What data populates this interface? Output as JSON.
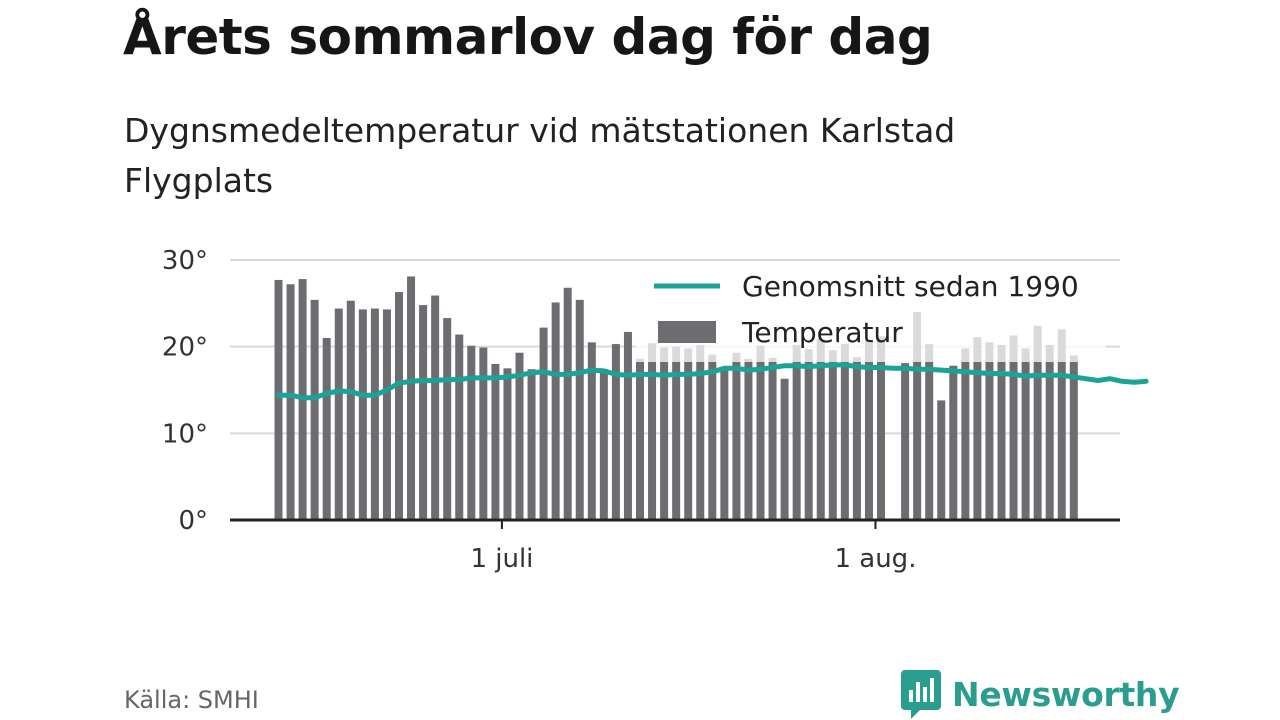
{
  "header": {
    "title": "Årets sommarlov dag för dag",
    "subtitle": "Dygnsmedeltemperatur vid mätstationen Karlstad Flygplats"
  },
  "footer": {
    "source": "Källa: SMHI",
    "brand": "Newsworthy"
  },
  "colors": {
    "bar": "#6d6d71",
    "line": "#1aa396",
    "grid": "#d9d9d9",
    "axis": "#222222",
    "legend_bg": "rgba(255,255,255,0.75)"
  },
  "chart_data": {
    "type": "bar",
    "title": "Årets sommarlov dag för dag",
    "subtitle": "Dygnsmedeltemperatur vid mätstationen Karlstad Flygplats",
    "xlabel": "",
    "ylabel": "",
    "ylim": [
      0,
      30
    ],
    "yticks": [
      {
        "value": 0,
        "label": "0°"
      },
      {
        "value": 10,
        "label": "10°"
      },
      {
        "value": 20,
        "label": "20°"
      },
      {
        "value": 30,
        "label": "30°"
      }
    ],
    "xticks": [
      {
        "date": "2018-07-01",
        "label": "1 juli"
      },
      {
        "date": "2018-08-01",
        "label": "1 aug."
      }
    ],
    "start_date": "2018-06-12",
    "grid": true,
    "legend_position": "top-right",
    "series": [
      {
        "name": "Genomsnitt sedan 1990",
        "type": "line",
        "color": "#1aa396",
        "values": [
          14.4,
          14.4,
          14.1,
          14.1,
          14.6,
          14.9,
          14.8,
          14.4,
          14.4,
          15.0,
          15.8,
          16.0,
          16.1,
          16.1,
          16.2,
          16.2,
          16.4,
          16.4,
          16.4,
          16.5,
          16.7,
          17.0,
          17.1,
          16.8,
          16.8,
          17.0,
          17.3,
          17.2,
          16.8,
          16.7,
          16.8,
          16.8,
          16.7,
          16.8,
          16.8,
          16.9,
          17.1,
          17.5,
          17.5,
          17.3,
          17.4,
          17.6,
          17.8,
          17.8,
          17.7,
          17.8,
          17.9,
          17.9,
          17.7,
          17.6,
          17.6,
          17.5,
          17.5,
          17.4,
          17.4,
          17.3,
          17.2,
          17.1,
          17.0,
          16.9,
          16.9,
          16.8,
          16.6,
          16.7,
          16.7,
          16.7,
          16.5,
          16.3,
          16.1,
          16.3,
          16.0,
          15.9,
          16.0
        ]
      },
      {
        "name": "Temperatur",
        "type": "bar",
        "color": "#6d6d71",
        "values": [
          27.7,
          27.2,
          27.8,
          25.4,
          21.0,
          24.4,
          25.3,
          24.3,
          24.4,
          24.3,
          26.3,
          28.1,
          24.8,
          25.9,
          23.3,
          21.4,
          20.1,
          19.9,
          18.0,
          17.5,
          19.3,
          17.4,
          22.2,
          25.1,
          26.8,
          25.4,
          20.5,
          17.4,
          20.3,
          21.7,
          18.6,
          20.4,
          19.9,
          20.0,
          19.8,
          20.2,
          19.1,
          17.6,
          19.3,
          18.6,
          20.1,
          18.7,
          16.3,
          20.2,
          19.7,
          20.9,
          19.6,
          20.3,
          18.8,
          20.7,
          21.2,
          null,
          18.1,
          24.0,
          20.3,
          13.8,
          17.8,
          19.8,
          21.1,
          20.5,
          20.2,
          21.3,
          19.8,
          22.4,
          20.2,
          22.0,
          19.0
        ]
      }
    ]
  }
}
